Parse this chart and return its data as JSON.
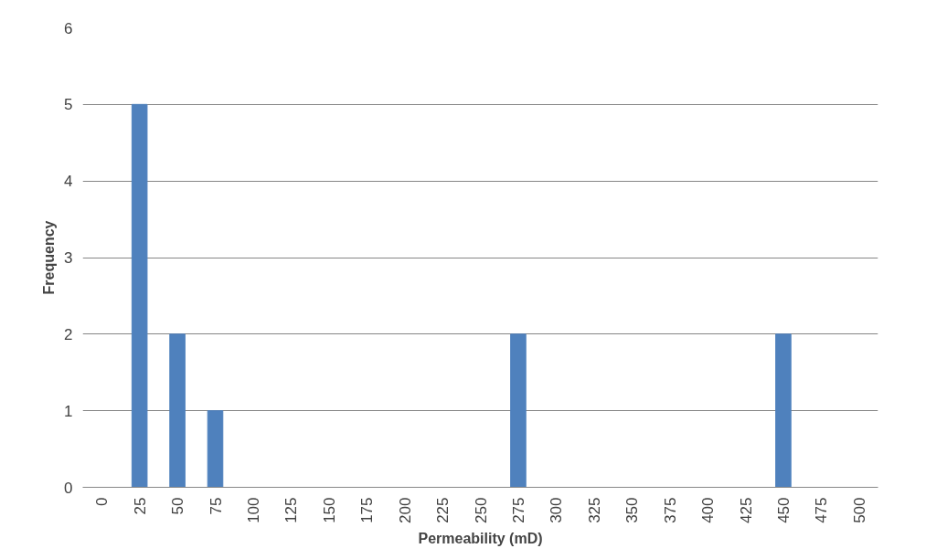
{
  "chart_data": {
    "type": "bar",
    "xlabel": "Permeability (mD)",
    "ylabel": "Frequency",
    "categories": [
      "0",
      "25",
      "50",
      "75",
      "100",
      "125",
      "150",
      "175",
      "200",
      "225",
      "250",
      "275",
      "300",
      "325",
      "350",
      "375",
      "400",
      "425",
      "450",
      "475",
      "500"
    ],
    "values": [
      0,
      5,
      2,
      1,
      0,
      0,
      0,
      0,
      0,
      0,
      0,
      2,
      0,
      0,
      0,
      0,
      0,
      0,
      2,
      0,
      0
    ],
    "color": "#4f81bd",
    "ylim": [
      0,
      6
    ],
    "yticks": [
      0,
      1,
      2,
      3,
      4,
      5,
      6
    ],
    "grid": "y"
  }
}
